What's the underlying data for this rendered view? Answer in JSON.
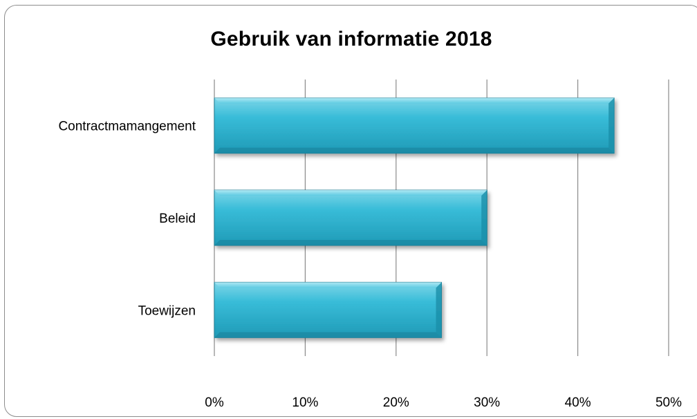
{
  "chart_data": {
    "type": "bar",
    "orientation": "horizontal",
    "title": "Gebruik van informatie 2018",
    "categories": [
      "Contractmamangement",
      "Beleid",
      "Toewijzen"
    ],
    "values": [
      0.44,
      0.3,
      0.25
    ],
    "xlim": [
      0,
      0.5
    ],
    "xticks": [
      "0%",
      "10%",
      "20%",
      "30%",
      "40%",
      "50%"
    ],
    "xlabel": "",
    "ylabel": "",
    "grid": "vertical",
    "legend": "none",
    "bar_color": "#2eb3cf",
    "bar_edge": "#1a7f96"
  }
}
